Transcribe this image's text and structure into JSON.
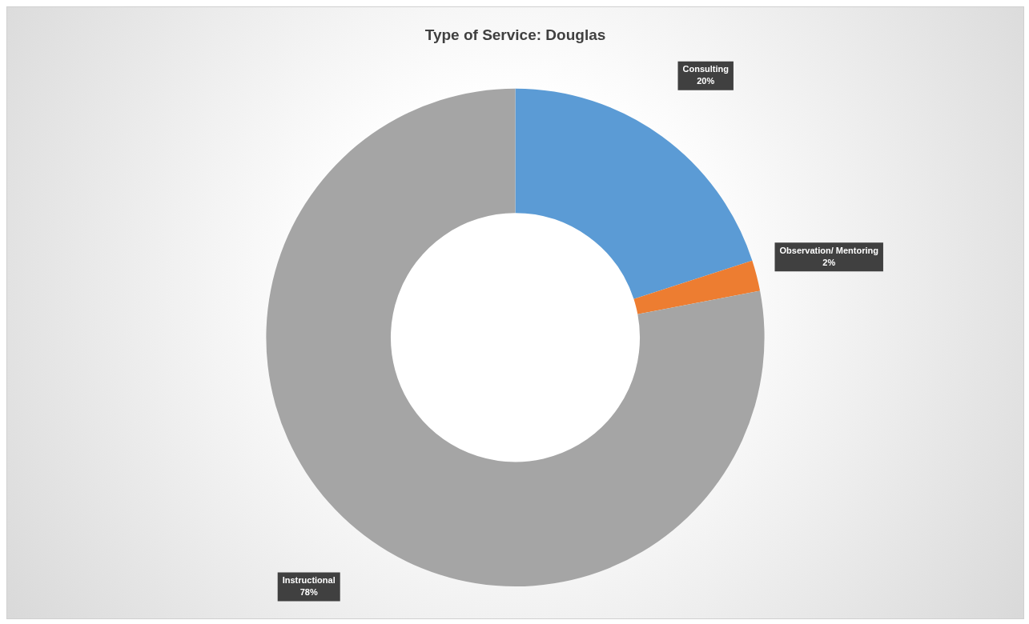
{
  "chart_data": {
    "type": "donut",
    "title": "Type of Service: Douglas",
    "categories": [
      "Consulting",
      "Observation/ Mentoring",
      "Instructional"
    ],
    "values": [
      20,
      2,
      78
    ],
    "colors": [
      "#5b9bd5",
      "#ed7d31",
      "#a5a5a5"
    ],
    "value_labels": [
      "20%",
      "2%",
      "78%"
    ],
    "legend": false
  }
}
